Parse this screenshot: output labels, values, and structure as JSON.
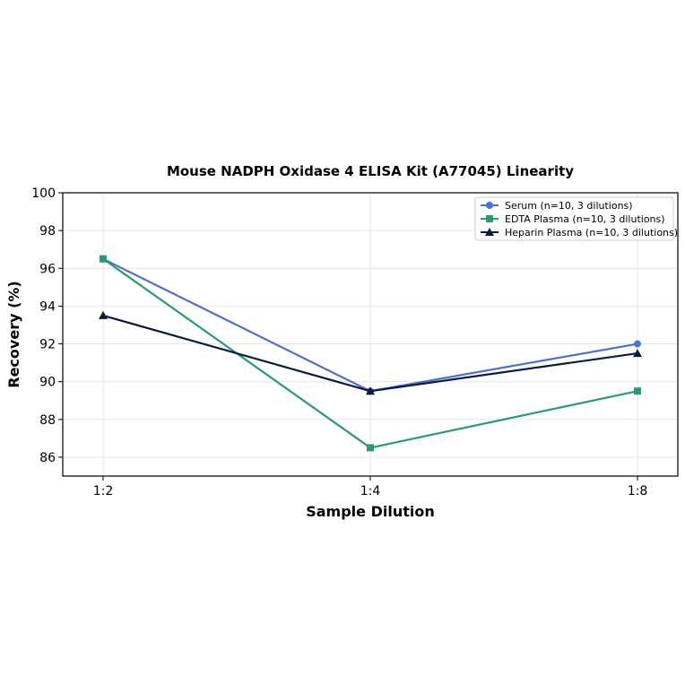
{
  "chart_data": {
    "type": "line",
    "title": "Mouse NADPH Oxidase 4 ELISA Kit (A77045) Linearity",
    "xlabel": "Sample Dilution",
    "ylabel": "Recovery (%)",
    "categories": [
      "1:2",
      "1:4",
      "1:8"
    ],
    "ylim": [
      85,
      100
    ],
    "yticks": [
      86,
      88,
      90,
      92,
      94,
      96,
      98,
      100
    ],
    "grid": true,
    "legend_position": "top-right",
    "series": [
      {
        "name": "Serum (n=10, 3 dilutions)",
        "values": [
          96.5,
          89.5,
          92.0
        ],
        "color": "#4f6fcf",
        "marker": "circle"
      },
      {
        "name": "EDTA Plasma (n=10, 3 dilutions)",
        "values": [
          96.5,
          86.5,
          89.5
        ],
        "color": "#2a9a74",
        "marker": "square"
      },
      {
        "name": "Heparin Plasma (n=10, 3 dilutions)",
        "values": [
          93.5,
          89.5,
          91.5
        ],
        "color": "#0d1b3f",
        "marker": "triangle"
      }
    ]
  }
}
